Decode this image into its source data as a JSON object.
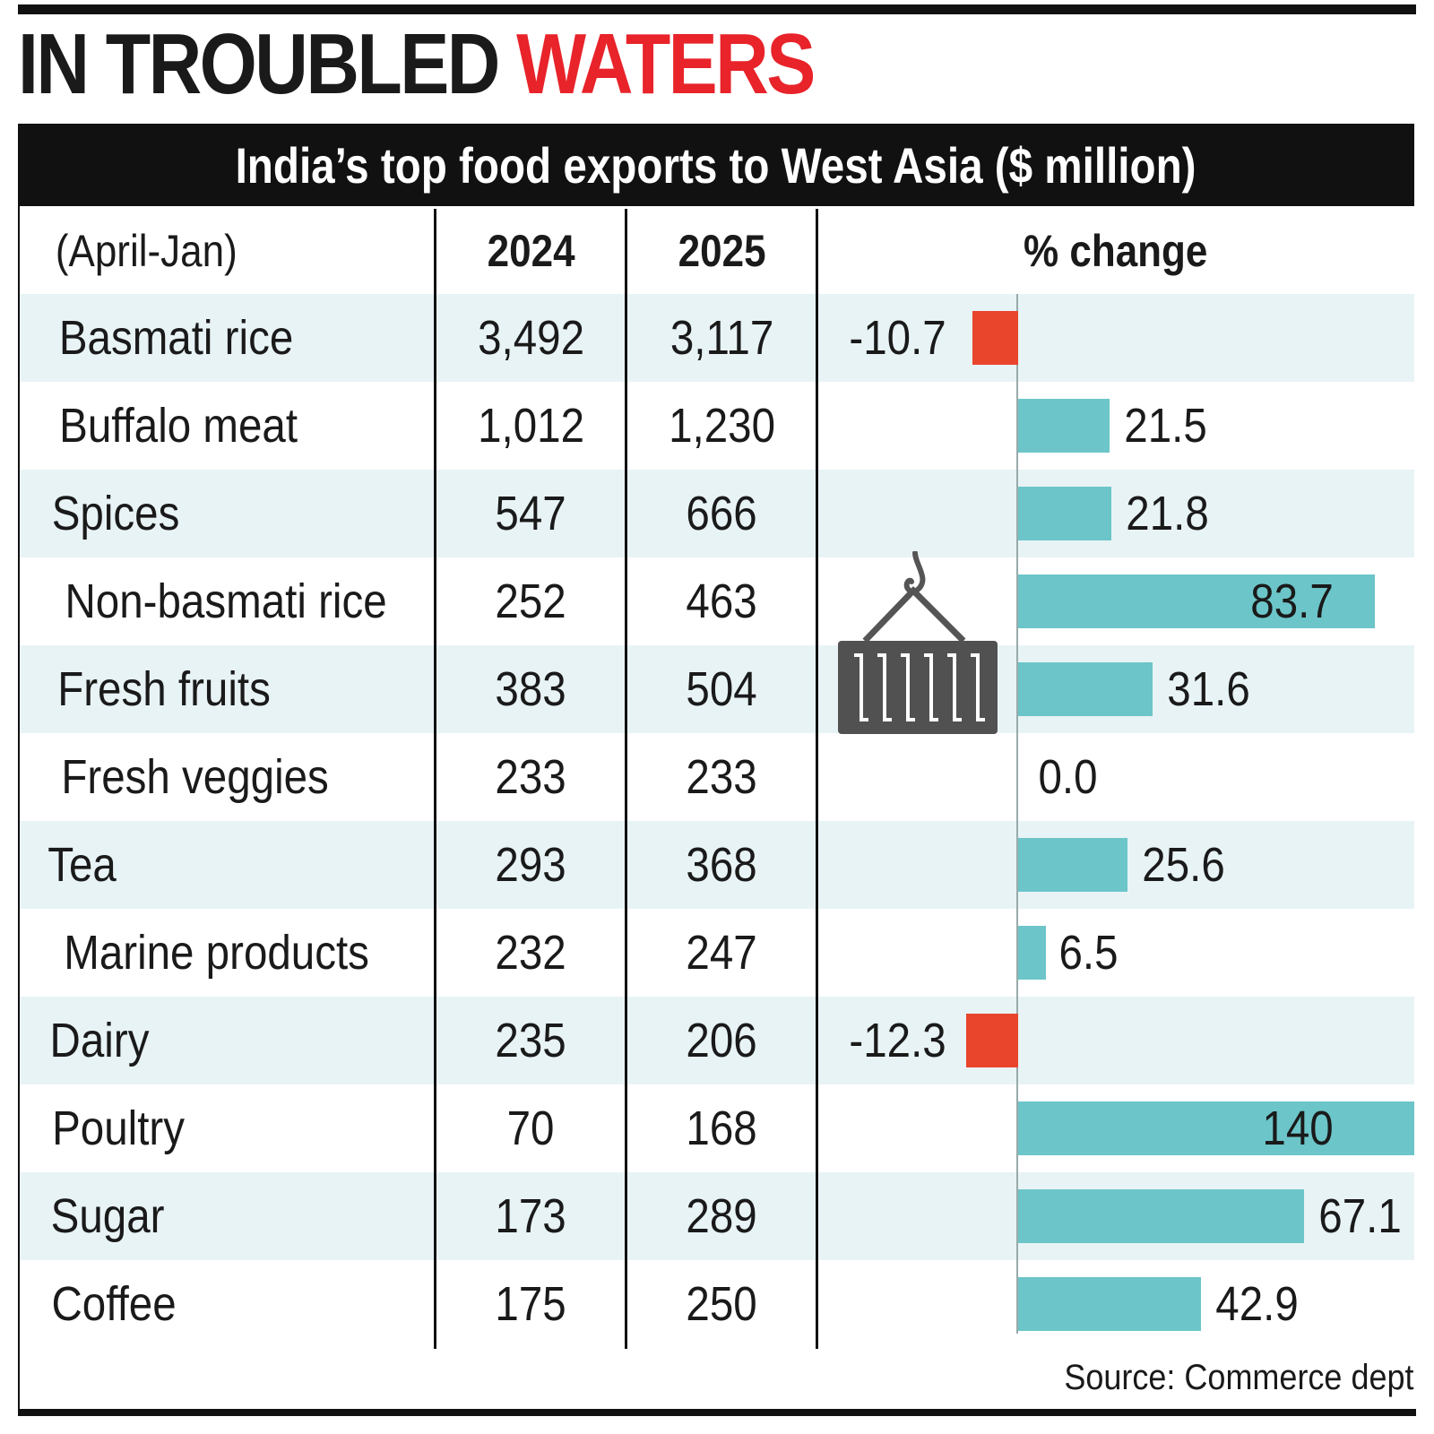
{
  "headline": {
    "black": "IN TROUBLED",
    "red": "WATERS"
  },
  "subtitle": "India’s top food exports to West Asia ($ million)",
  "colors": {
    "headline_red": "#e8232a",
    "increase_bar": "#6cc5c8",
    "decrease_bar": "#e8452c",
    "alt_row": "#e8f3f6"
  },
  "icon": "hanging-cargo-container-icon",
  "source": "Source: Commerce dept",
  "chart_data": {
    "type": "table",
    "title": "India’s top food exports to West Asia ($ million)",
    "columns": [
      "(April-Jan)",
      "2024",
      "2025",
      "% change"
    ],
    "rows": [
      {
        "item": "Basmati rice",
        "y2024": "3,492",
        "y2025": "3,117",
        "change": -10.7,
        "label": "-10.7"
      },
      {
        "item": "Buffalo meat",
        "y2024": "1,012",
        "y2025": "1,230",
        "change": 21.5,
        "label": "21.5"
      },
      {
        "item": "Spices",
        "y2024": "547",
        "y2025": "666",
        "change": 21.8,
        "label": "21.8"
      },
      {
        "item": "Non-basmati rice",
        "y2024": "252",
        "y2025": "463",
        "change": 83.7,
        "label": "83.7"
      },
      {
        "item": "Fresh fruits",
        "y2024": "383",
        "y2025": "504",
        "change": 31.6,
        "label": "31.6"
      },
      {
        "item": "Fresh veggies",
        "y2024": "233",
        "y2025": "233",
        "change": 0.0,
        "label": "0.0"
      },
      {
        "item": "Tea",
        "y2024": "293",
        "y2025": "368",
        "change": 25.6,
        "label": "25.6"
      },
      {
        "item": "Marine products",
        "y2024": "232",
        "y2025": "247",
        "change": 6.5,
        "label": "6.5"
      },
      {
        "item": "Dairy",
        "y2024": "235",
        "y2025": "206",
        "change": -12.3,
        "label": "-12.3"
      },
      {
        "item": "Poultry",
        "y2024": "70",
        "y2025": "168",
        "change": 140,
        "label": "140",
        "truncated": true
      },
      {
        "item": "Sugar",
        "y2024": "173",
        "y2025": "289",
        "change": 67.1,
        "label": "67.1"
      },
      {
        "item": "Coffee",
        "y2024": "175",
        "y2025": "250",
        "change": 42.9,
        "label": "42.9"
      }
    ]
  }
}
